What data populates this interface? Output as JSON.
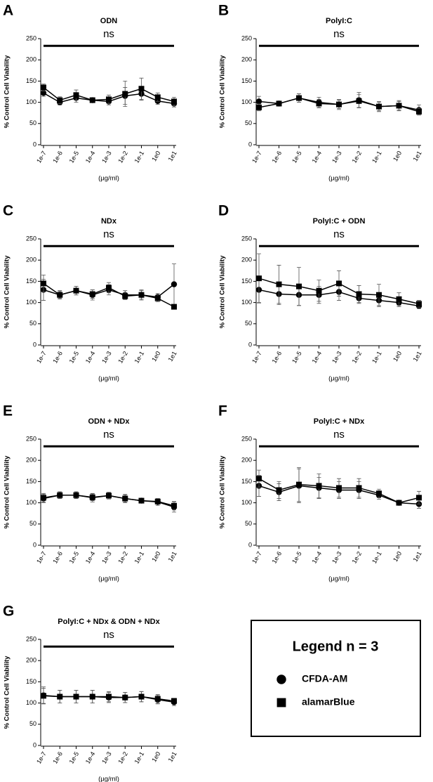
{
  "chart_data": [
    {
      "type": "line",
      "label": "A",
      "title": "ODN",
      "annotation": "ns",
      "ylabel": "% Control Cell Viability",
      "xlabel": "(µg/ml)",
      "categories": [
        "1e-7",
        "1e-6",
        "1e-5",
        "1e-4",
        "1e-3",
        "1e-2",
        "1e-1",
        "1e0",
        "1e1"
      ],
      "ylim": [
        0,
        250
      ],
      "yticks": [
        0,
        50,
        100,
        150,
        200,
        250
      ],
      "series": [
        {
          "name": "CFDA-AM",
          "marker": "circle",
          "color": "#000000",
          "values": [
            122,
            100,
            110,
            105,
            102,
            115,
            120,
            103,
            97
          ],
          "errors": [
            8,
            6,
            10,
            3,
            8,
            20,
            15,
            8,
            8
          ]
        },
        {
          "name": "alamarBlue",
          "marker": "square",
          "color": "#000000",
          "values": [
            135,
            105,
            117,
            105,
            107,
            120,
            132,
            112,
            102
          ],
          "errors": [
            8,
            8,
            12,
            3,
            10,
            30,
            25,
            10,
            10
          ]
        }
      ]
    },
    {
      "type": "line",
      "label": "B",
      "title": "PolyI:C",
      "annotation": "ns",
      "ylabel": "% Control Cell Viability",
      "xlabel": "(µg/ml)",
      "categories": [
        "1e-7",
        "1e-6",
        "1e-5",
        "1e-4",
        "1e-3",
        "1e-2",
        "1e-1",
        "1e0",
        "1e1"
      ],
      "ylim": [
        0,
        250
      ],
      "yticks": [
        0,
        50,
        100,
        150,
        200,
        250
      ],
      "series": [
        {
          "name": "CFDA-AM",
          "marker": "circle",
          "color": "#000000",
          "values": [
            102,
            97,
            110,
            100,
            95,
            105,
            90,
            92,
            82
          ],
          "errors": [
            12,
            6,
            10,
            12,
            12,
            18,
            12,
            12,
            12
          ]
        },
        {
          "name": "alamarBlue",
          "marker": "square",
          "color": "#000000",
          "values": [
            88,
            97,
            110,
            97,
            95,
            103,
            90,
            92,
            78
          ],
          "errors": [
            8,
            5,
            10,
            10,
            10,
            15,
            10,
            10,
            8
          ]
        }
      ]
    },
    {
      "type": "line",
      "label": "C",
      "title": "NDx",
      "annotation": "ns",
      "ylabel": "% Control Cell Viability",
      "xlabel": "(µg/ml)",
      "categories": [
        "1e-7",
        "1e-6",
        "1e-5",
        "1e-4",
        "1e-3",
        "1e-2",
        "1e-1",
        "1e0",
        "1e1"
      ],
      "ylim": [
        0,
        250
      ],
      "yticks": [
        0,
        50,
        100,
        150,
        200,
        250
      ],
      "series": [
        {
          "name": "CFDA-AM",
          "marker": "circle",
          "color": "#000000",
          "values": [
            130,
            118,
            128,
            118,
            130,
            118,
            118,
            113,
            143
          ],
          "errors": [
            25,
            10,
            10,
            12,
            12,
            10,
            12,
            8,
            48
          ]
        },
        {
          "name": "alamarBlue",
          "marker": "square",
          "color": "#000000",
          "values": [
            145,
            118,
            128,
            120,
            135,
            115,
            118,
            110,
            90
          ],
          "errors": [
            20,
            8,
            10,
            10,
            12,
            8,
            10,
            8,
            5
          ]
        }
      ]
    },
    {
      "type": "line",
      "label": "D",
      "title": "PolyI:C + ODN",
      "annotation": "ns",
      "ylabel": "% Control Cell Viability",
      "xlabel": "(µg/ml)",
      "categories": [
        "1e-7",
        "1e-6",
        "1e-5",
        "1e-4",
        "1e-3",
        "1e-2",
        "1e-1",
        "1e0",
        "1e1"
      ],
      "ylim": [
        0,
        250
      ],
      "yticks": [
        0,
        50,
        100,
        150,
        200,
        250
      ],
      "series": [
        {
          "name": "CFDA-AM",
          "marker": "circle",
          "color": "#000000",
          "values": [
            130,
            120,
            118,
            118,
            125,
            110,
            105,
            100,
            92
          ],
          "errors": [
            30,
            25,
            25,
            20,
            20,
            12,
            15,
            10,
            6
          ]
        },
        {
          "name": "alamarBlue",
          "marker": "square",
          "color": "#000000",
          "values": [
            157,
            143,
            138,
            128,
            145,
            120,
            118,
            108,
            97
          ],
          "errors": [
            58,
            45,
            45,
            25,
            30,
            20,
            25,
            15,
            8
          ]
        }
      ]
    },
    {
      "type": "line",
      "label": "E",
      "title": "ODN + NDx",
      "annotation": "ns",
      "ylabel": "% Control Cell Viability",
      "xlabel": "(µg/ml)",
      "categories": [
        "1e-7",
        "1e-6",
        "1e-5",
        "1e-4",
        "1e-3",
        "1e-2",
        "1e-1",
        "1e0",
        "1e1"
      ],
      "ylim": [
        0,
        250
      ],
      "yticks": [
        0,
        50,
        100,
        150,
        200,
        250
      ],
      "series": [
        {
          "name": "CFDA-AM",
          "marker": "circle",
          "color": "#000000",
          "values": [
            110,
            118,
            118,
            112,
            117,
            110,
            105,
            102,
            90
          ],
          "errors": [
            10,
            8,
            8,
            10,
            8,
            10,
            5,
            8,
            12
          ]
        },
        {
          "name": "alamarBlue",
          "marker": "square",
          "color": "#000000",
          "values": [
            112,
            118,
            118,
            113,
            117,
            110,
            105,
            103,
            93
          ],
          "errors": [
            10,
            8,
            8,
            8,
            6,
            8,
            5,
            6,
            10
          ]
        }
      ]
    },
    {
      "type": "line",
      "label": "F",
      "title": "PolyI:C + NDx",
      "annotation": "ns",
      "ylabel": "% Control Cell Viability",
      "xlabel": "(µg/ml)",
      "categories": [
        "1e-7",
        "1e-6",
        "1e-5",
        "1e-4",
        "1e-3",
        "1e-2",
        "1e-1",
        "1e0",
        "1e1"
      ],
      "ylim": [
        0,
        250
      ],
      "yticks": [
        0,
        50,
        100,
        150,
        200,
        250
      ],
      "series": [
        {
          "name": "CFDA-AM",
          "marker": "circle",
          "color": "#000000",
          "values": [
            140,
            125,
            140,
            135,
            130,
            130,
            118,
            100,
            97
          ],
          "errors": [
            25,
            20,
            40,
            25,
            20,
            20,
            10,
            4,
            10
          ]
        },
        {
          "name": "alamarBlue",
          "marker": "square",
          "color": "#000000",
          "values": [
            157,
            130,
            143,
            140,
            135,
            135,
            122,
            100,
            112
          ],
          "errors": [
            20,
            20,
            40,
            28,
            22,
            22,
            10,
            4,
            15
          ]
        }
      ]
    },
    {
      "type": "line",
      "label": "G",
      "title": "PolyI:C + NDx & ODN + NDx",
      "annotation": "ns",
      "ylabel": "% Control Cell Viability",
      "xlabel": "(µg/ml)",
      "categories": [
        "1e-7",
        "1e-6",
        "1e-5",
        "1e-4",
        "1e-3",
        "1e-2",
        "1e-1",
        "1e0",
        "1e1"
      ],
      "ylim": [
        0,
        250
      ],
      "yticks": [
        0,
        50,
        100,
        150,
        200,
        250
      ],
      "series": [
        {
          "name": "CFDA-AM",
          "marker": "circle",
          "color": "#000000",
          "values": [
            118,
            115,
            115,
            115,
            113,
            113,
            115,
            108,
            102
          ],
          "errors": [
            20,
            15,
            15,
            15,
            12,
            12,
            12,
            10,
            8
          ]
        },
        {
          "name": "alamarBlue",
          "marker": "square",
          "color": "#000000",
          "values": [
            117,
            115,
            115,
            115,
            115,
            113,
            115,
            110,
            105
          ],
          "errors": [
            18,
            15,
            15,
            15,
            12,
            12,
            12,
            10,
            6
          ]
        }
      ]
    }
  ],
  "legend": {
    "title": "Legend n = 3"
  }
}
